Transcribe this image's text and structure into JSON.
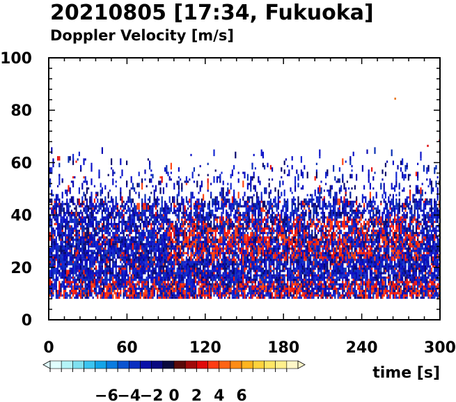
{
  "chart_data": {
    "type": "heatmap",
    "title": "20210805 [17:34, Fukuoka]",
    "subtitle": "Doppler Velocity [m/s]",
    "xlabel": "time [s]",
    "ylabel": "",
    "xlim": [
      0,
      300
    ],
    "ylim": [
      0,
      100
    ],
    "x_ticks": [
      "0",
      "60",
      "120",
      "180",
      "240",
      "300"
    ],
    "y_ticks": [
      "0",
      "20",
      "40",
      "60",
      "80",
      "100"
    ],
    "colorbar": {
      "label_values": [
        "−6",
        "−4",
        "−2",
        "0",
        "2",
        "4",
        "6"
      ],
      "colors": [
        "#e0ffff",
        "#b4f4f8",
        "#7fe0f0",
        "#3cc4f0",
        "#14a4e8",
        "#0a7ce0",
        "#0a54d0",
        "#0a30c0",
        "#0a10a8",
        "#0a0a80",
        "#0a0a3c",
        "#5a0a0a",
        "#a00a0a",
        "#e00a0a",
        "#ff3c14",
        "#ff6414",
        "#ff8c14",
        "#ffb41e",
        "#ffd23c",
        "#ffe664",
        "#fff08c",
        "#fff8c8"
      ]
    },
    "data_region": {
      "x_range": [
        0,
        300
      ],
      "height_range": [
        8,
        65
      ],
      "dense_top_height": 45,
      "notes": [
        {
          "x": 265,
          "height": 84,
          "color": "#e8741c"
        },
        {
          "x": 290,
          "height": 66,
          "color": "#e01010"
        },
        {
          "x": 299,
          "height": 68,
          "color": "#e01010"
        }
      ]
    },
    "palette": {
      "blue": [
        "#0a10c8",
        "#0a0ab4",
        "#1428d2",
        "#0a30b4",
        "#08086e"
      ],
      "red": [
        "#ff1e0a",
        "#e61414",
        "#ff4614"
      ],
      "axis": "#000000"
    }
  }
}
